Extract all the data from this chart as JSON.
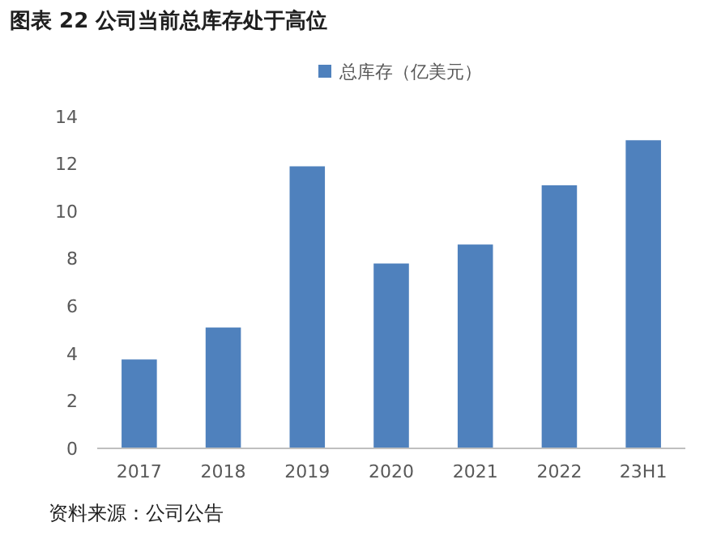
{
  "chart_data": {
    "type": "bar",
    "title": "图表 22  公司当前总库存处于高位",
    "categories": [
      "2017",
      "2018",
      "2019",
      "2020",
      "2021",
      "2022",
      "23H1"
    ],
    "series": [
      {
        "name": "总库存（亿美元）",
        "color": "#4f81bd",
        "values": [
          3.75,
          5.1,
          11.9,
          7.8,
          8.6,
          11.1,
          13.0
        ]
      }
    ],
    "ylim": [
      0,
      14
    ],
    "yticks": [
      0,
      2,
      4,
      6,
      8,
      10,
      12,
      14
    ],
    "grid": false,
    "legend": "top",
    "annotations": [
      "资料来源：公司公告"
    ]
  }
}
